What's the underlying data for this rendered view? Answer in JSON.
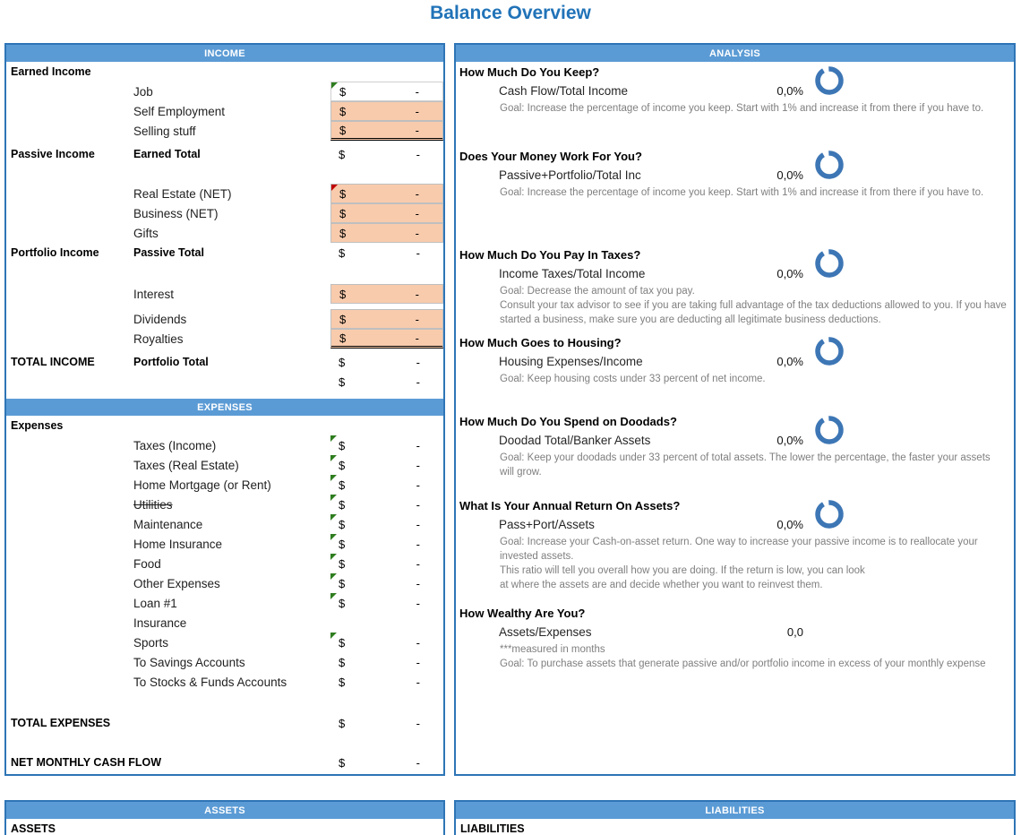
{
  "title": "Balance Overview",
  "currency_symbol": "$",
  "colors": {
    "header_bg": "#5B9BD5",
    "header_text": "#FFFFFF",
    "panel_border": "#2E75B6",
    "highlight_cell": "#F8CBAD",
    "ring": "#3D76B5",
    "title_text": "#2173B8",
    "note_text": "#7F7F7F",
    "marker_green": "#2E7D1F",
    "marker_red": "#C00000"
  },
  "income": {
    "header": "INCOME",
    "rows": [
      {
        "c1": "Earned Income"
      },
      {
        "c2": "Job",
        "v": "-",
        "box": true,
        "mark": "green"
      },
      {
        "c2": "Self Employment",
        "v": "-",
        "fill": true
      },
      {
        "c2": "Selling stuff",
        "v": "-",
        "fill": true,
        "dbl": true
      },
      {
        "c1": "Passive Income",
        "c2": "Earned Total",
        "c2bold": true,
        "v": "-"
      },
      {
        "spacer": true
      },
      {
        "c2": "Real Estate (NET)",
        "v": "-",
        "fill": true,
        "mark": "red"
      },
      {
        "c2": "Business (NET)",
        "v": "-",
        "fill": true
      },
      {
        "c2": "Gifts",
        "v": "-",
        "fill": true
      },
      {
        "c1": "Portfolio Income",
        "c2": "Passive Total",
        "c2bold": true,
        "v": "-"
      },
      {
        "spacer": true
      },
      {
        "c2": "Interest",
        "v": "-",
        "fill": true
      },
      {
        "c2": "Dividends",
        "v": "-",
        "fill": true
      },
      {
        "c2": "Royalties",
        "v": "-",
        "fill": true,
        "dbl": true
      },
      {
        "c1": "TOTAL INCOME",
        "c2": "Portfolio Total",
        "c2bold": true,
        "v": "-"
      },
      {
        "v": "-"
      }
    ]
  },
  "expenses": {
    "header": "EXPENSES",
    "rows": [
      {
        "c1": "Expenses"
      },
      {
        "c2": "Taxes (Income)",
        "v": "-",
        "mark": "green"
      },
      {
        "c2": "Taxes (Real Estate)",
        "v": "-",
        "mark": "green"
      },
      {
        "c2": "Home Mortgage (or Rent)",
        "v": "-",
        "mark": "green"
      },
      {
        "c2": "Utilities",
        "strike": true,
        "v": "-",
        "mark": "green"
      },
      {
        "c2": "Maintenance",
        "v": "-",
        "mark": "green"
      },
      {
        "c2": "Home Insurance",
        "v": "-",
        "mark": "green"
      },
      {
        "c2": "Food",
        "v": "-",
        "mark": "green"
      },
      {
        "c2": "Other Expenses",
        "v": "-",
        "mark": "green"
      },
      {
        "c2": "Loan #1",
        "v": "-",
        "mark": "green"
      },
      {
        "c2": "Insurance"
      },
      {
        "c2": "Sports",
        "v": "-",
        "mark": "green"
      },
      {
        "c2": "To Savings Accounts",
        "v": "-"
      },
      {
        "c2": "To Stocks & Funds Accounts",
        "v": "-"
      },
      {
        "spacer": true
      },
      {
        "c1": "TOTAL EXPENSES",
        "v": "-"
      },
      {
        "spacer": true
      },
      {
        "c1": "NET MONTHLY CASH FLOW",
        "v": "-"
      }
    ]
  },
  "analysis": {
    "header": "ANALYSIS",
    "sections": [
      {
        "question": "How Much Do You Keep?",
        "metric": "Cash Flow/Total Income",
        "value": "0,0%",
        "ring": true,
        "notes": [
          "Goal: Increase the percentage of income you keep. Start with 1% and increase it from there if you have to."
        ]
      },
      {
        "question": "Does Your Money Work For You?",
        "metric": "Passive+Portfolio/Total Inc",
        "value": "0,0%",
        "ring": true,
        "notes": [
          "Goal: Increase the percentage of income you keep. Start with 1% and increase it from there if you have to."
        ]
      },
      {
        "question": "How Much Do You Pay In Taxes?",
        "metric": "Income Taxes/Total Income",
        "value": "0,0%",
        "ring": true,
        "notes": [
          "Goal: Decrease the amount of tax you pay.",
          "Consult your tax advisor to see if you are taking full advantage of the tax deductions allowed to you. If you have started a business, make sure you are deducting all legitimate business deductions."
        ]
      },
      {
        "question": "How Much Goes to Housing?",
        "metric": "Housing Expenses/Income",
        "value": "0,0%",
        "ring": true,
        "notes": [
          "Goal: Keep housing costs under 33 percent of net income."
        ]
      },
      {
        "question": "How Much Do You Spend on Doodads?",
        "metric": "Doodad Total/Banker Assets",
        "value": "0,0%",
        "ring": true,
        "notes": [
          "Goal: Keep your doodads under 33 percent of total assets. The lower the percentage, the faster your assets will grow."
        ]
      },
      {
        "question": "What Is Your Annual Return On Assets?",
        "metric": "Pass+Port/Assets",
        "value": "0,0%",
        "ring": true,
        "notes": [
          "Goal: Increase your Cash-on-asset return. One way to increase your passive income is to reallocate your invested assets.",
          "This ratio will tell you overall how you are doing. If the return is low, you can look",
          "at where the assets are and decide whether you want to reinvest them."
        ]
      },
      {
        "question": "How Wealthy Are You?",
        "metric": "Assets/Expenses",
        "value": "0,0",
        "ring": false,
        "notes": [
          "***measured in months",
          "Goal: To purchase assets that generate passive and/or portfolio income in excess of your monthly expense"
        ]
      }
    ]
  },
  "assets": {
    "header": "ASSETS",
    "label": "ASSETS"
  },
  "liabilities": {
    "header": "LIABILITIES",
    "label": "LIABILITIES"
  }
}
